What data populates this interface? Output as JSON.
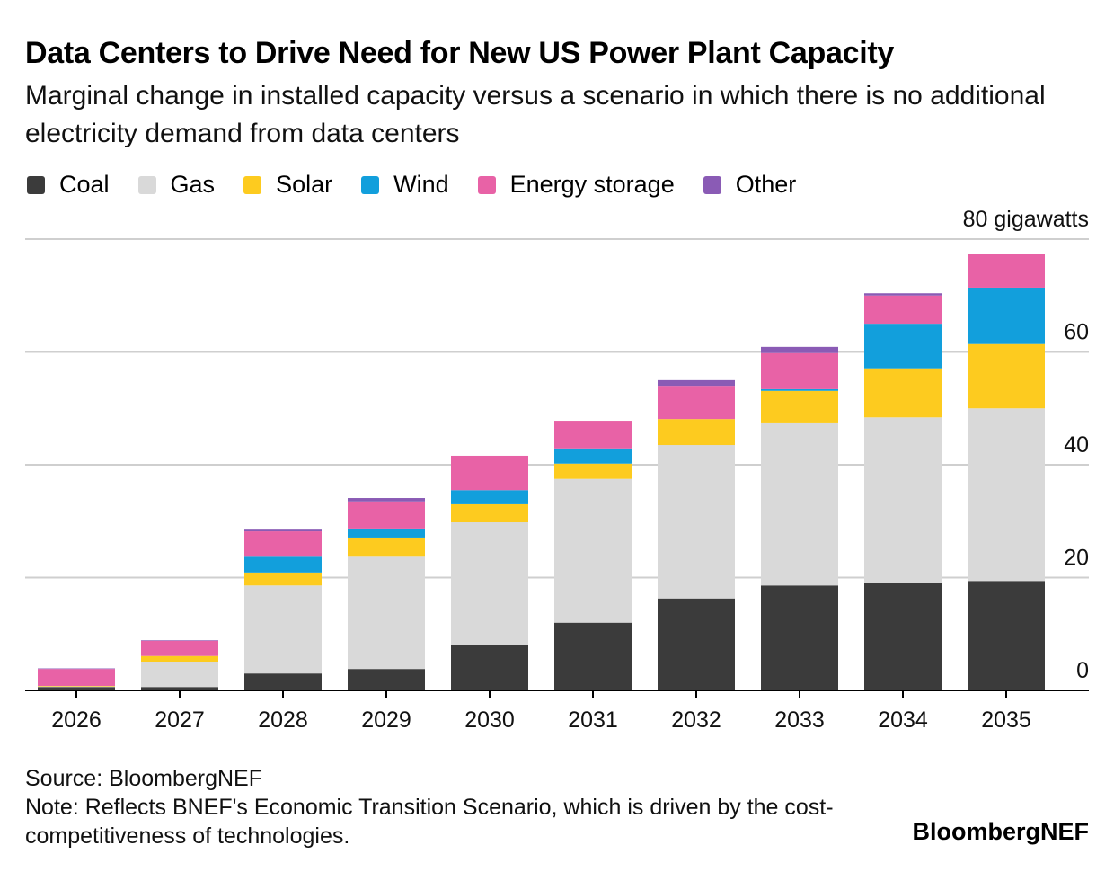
{
  "header": {
    "title": "Data Centers to Drive Need for New US Power Plant Capacity",
    "subtitle": "Marginal change in installed capacity versus a scenario in which there is no additional electricity demand from data centers"
  },
  "footer": {
    "source": "Source: BloombergNEF",
    "note": "Note: Reflects BNEF's Economic Transition Scenario, which is driven by the cost-competitiveness of technologies.",
    "brand": "BloombergNEF"
  },
  "chart_data": {
    "type": "bar",
    "stacked": true,
    "title": "Data Centers to Drive Need for New US Power Plant Capacity",
    "ylabel": "gigawatts",
    "unit_label": "80 gigawatts",
    "ylim": [
      0,
      80
    ],
    "yticks": [
      0,
      20,
      40,
      60,
      80
    ],
    "ytick_labels": [
      "0",
      "20",
      "40",
      "60",
      "80 gigawatts"
    ],
    "grid": true,
    "legend_position": "top-left",
    "categories": [
      "2026",
      "2027",
      "2028",
      "2029",
      "2030",
      "2031",
      "2032",
      "2033",
      "2034",
      "2035"
    ],
    "series": [
      {
        "name": "Coal",
        "color": "#3b3b3b",
        "values": [
          0.6,
          0.6,
          3.0,
          3.8,
          8.1,
          12.0,
          16.3,
          18.6,
          19.0,
          19.4
        ]
      },
      {
        "name": "Gas",
        "color": "#d9d9d9",
        "values": [
          0.1,
          4.5,
          15.6,
          19.9,
          21.7,
          25.5,
          27.2,
          28.9,
          29.4,
          30.6
        ]
      },
      {
        "name": "Solar",
        "color": "#fdcb1f",
        "values": [
          0.1,
          1.0,
          2.3,
          3.4,
          3.2,
          2.7,
          4.6,
          5.6,
          8.7,
          11.4
        ]
      },
      {
        "name": "Wind",
        "color": "#129fdc",
        "values": [
          0,
          0,
          2.8,
          1.6,
          2.5,
          2.7,
          0,
          0.3,
          7.9,
          10.0
        ]
      },
      {
        "name": "Energy storage",
        "color": "#e862a6",
        "values": [
          3.0,
          2.7,
          4.5,
          4.8,
          6.1,
          4.9,
          5.9,
          6.4,
          5.0,
          5.9
        ]
      },
      {
        "name": "Other",
        "color": "#8a5bb5",
        "values": [
          0.1,
          0.1,
          0.3,
          0.6,
          0,
          0,
          1.0,
          1.1,
          0.4,
          0
        ]
      }
    ]
  }
}
